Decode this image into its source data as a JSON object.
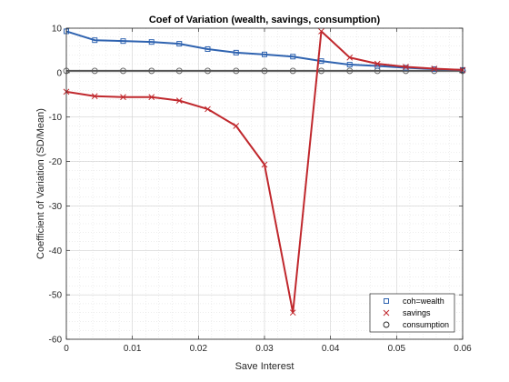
{
  "chart_data": {
    "type": "line",
    "title": "Coef of Variation (wealth, savings, consumption)",
    "xlabel": "Save Interest",
    "ylabel": "Coefficient of Variation (SD/Mean)",
    "xlim": [
      0,
      0.06
    ],
    "ylim": [
      -60,
      10
    ],
    "xticks": [
      0,
      0.01,
      0.02,
      0.03,
      0.04,
      0.05,
      0.06
    ],
    "xtick_labels": [
      "0",
      "0.01",
      "0.02",
      "0.03",
      "0.04",
      "0.05",
      "0.06"
    ],
    "yticks": [
      -60,
      -50,
      -40,
      -30,
      -20,
      -10,
      0,
      10
    ],
    "ytick_labels": [
      "-60",
      "-50",
      "-40",
      "-30",
      "-20",
      "-10",
      "0",
      "10"
    ],
    "grid": true,
    "minor_grid": true,
    "legend_position": "bottom-right",
    "x": [
      0,
      0.0043,
      0.0086,
      0.0129,
      0.0171,
      0.0214,
      0.0257,
      0.03,
      0.0343,
      0.0386,
      0.0429,
      0.0471,
      0.0514,
      0.0557,
      0.06
    ],
    "series": [
      {
        "name": "coh=wealth",
        "marker": "square",
        "color": "#2f63b0",
        "values": [
          9.3,
          7.3,
          7.1,
          6.9,
          6.5,
          5.3,
          4.5,
          4.1,
          3.6,
          2.6,
          1.8,
          1.5,
          1.1,
          0.8,
          0.6
        ]
      },
      {
        "name": "savings",
        "marker": "x",
        "color": "#c0282d",
        "values": [
          -4.3,
          -5.3,
          -5.5,
          -5.5,
          -6.3,
          -8.2,
          -12.0,
          -20.7,
          -54.0,
          9.3,
          3.4,
          2.0,
          1.3,
          0.9,
          0.6
        ]
      },
      {
        "name": "consumption",
        "marker": "circle",
        "color": "#555555",
        "values": [
          0.4,
          0.4,
          0.4,
          0.4,
          0.4,
          0.4,
          0.4,
          0.4,
          0.4,
          0.4,
          0.4,
          0.4,
          0.4,
          0.4,
          0.4
        ]
      }
    ]
  }
}
